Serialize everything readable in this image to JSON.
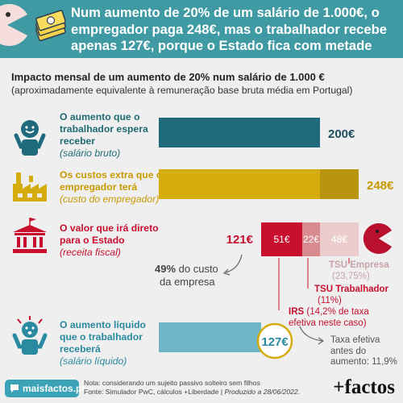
{
  "header": {
    "headline": "Num aumento de 20% de um salário de 1.000€, o empregador paga 248€, mas o trabalhador recebe apenas 127€, porque o Estado fica com metade"
  },
  "subtitle": {
    "title": "Impacto mensal de um aumento de 20% num salário de 1.000 €",
    "note": "(aproximadamente equivalente à remuneração base bruta média em Portugal)"
  },
  "rows": [
    {
      "label": "O aumento que o trabalhador espera receber",
      "sub": "(salário bruto)",
      "value_label": "200€"
    },
    {
      "label": "Os custos extra que o empregador terá",
      "sub": "(custo do empregador)",
      "value_label": "248€"
    },
    {
      "label": "O valor que irá direto para o Estado",
      "sub": "(receita fiscal)",
      "value_label": "121€"
    },
    {
      "label": "O aumento líquido que o trabalhador receberá",
      "sub": "(salário líquido)",
      "value_label": "127€"
    }
  ],
  "annotations": {
    "pct_main": "49%",
    "pct_rest": " do custo",
    "pct_line2": "da empresa",
    "tsu_empresa": "TSU Empresa",
    "tsu_empresa_pct": "(23,75%)",
    "tsu_trab": "TSU Trabalhador",
    "tsu_trab_pct": "(11%)",
    "irs_bold": "IRS",
    "irs_rest": " (14,2% de taxa",
    "irs_line2": "efetiva neste caso)",
    "taxa_line1": "Taxa efetiva",
    "taxa_line2": "antes do",
    "taxa_line3": "aumento: 11,9%"
  },
  "chart_data": {
    "type": "bar",
    "categories": [
      "salário bruto",
      "custo do empregador",
      "receita fiscal",
      "salário líquido"
    ],
    "values": [
      200,
      248,
      121,
      127
    ],
    "unit": "€",
    "breakdowns": {
      "custo do empregador": [
        {
          "name": "salário bruto",
          "value": 200
        },
        {
          "name": "TSU Empresa",
          "value": 48
        }
      ],
      "receita fiscal": [
        {
          "name": "IRS",
          "value": 51,
          "label": "51€"
        },
        {
          "name": "TSU Trabalhador",
          "value": 22,
          "label": "22€"
        },
        {
          "name": "TSU Empresa",
          "value": 48,
          "label": "48€"
        }
      ]
    },
    "colors": {
      "bruto": "#1f6b7d",
      "custo": "#d4ac0d",
      "custo_extra": "#b8950d",
      "irs": "#c8102e",
      "tsu_trab": "#d98a8f",
      "tsu_empresa": "#eccdcd",
      "liquido": "#6fb5c8"
    }
  },
  "footer": {
    "logo": "maisfactos.pt",
    "note_line1": "Nota: considerando um sujeito passivo solteiro sem filhos",
    "note_line2_a": "Fonte: Simulador PwC, cálculos +Liberdade | ",
    "note_line2_b": "Produzido a 28/06/2022.",
    "brand": "+factos"
  }
}
